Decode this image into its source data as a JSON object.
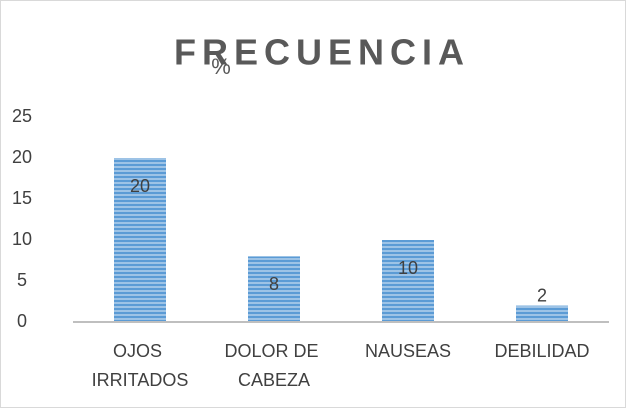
{
  "chart_data": {
    "type": "bar",
    "title": "FRECUENCIA",
    "annotation": "%",
    "categories": [
      "OJOS IRRITADOS",
      "DOLOR DE CABEZA",
      "NAUSEAS",
      "DEBILIDAD"
    ],
    "values": [
      20,
      8,
      10,
      2
    ],
    "color": "#5b9bd5",
    "ylim": [
      0,
      25
    ],
    "yticks": [
      0,
      5,
      10,
      15,
      20,
      25
    ],
    "grid": false
  }
}
